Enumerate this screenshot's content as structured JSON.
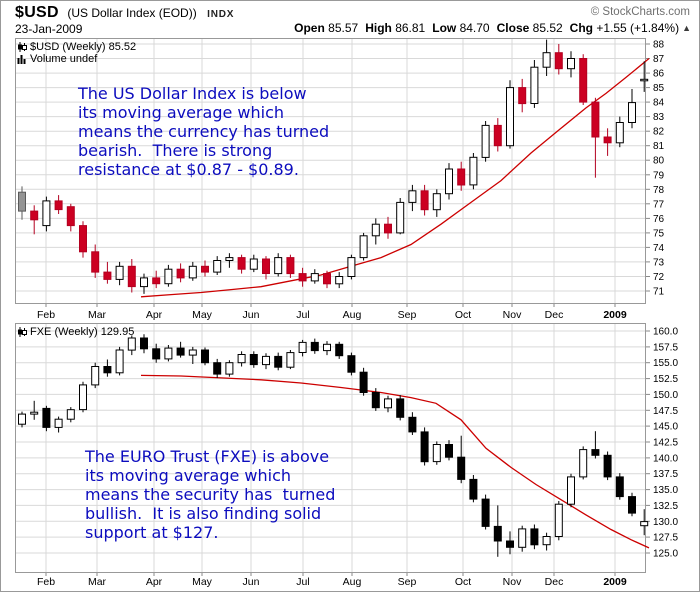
{
  "header": {
    "symbol": "$USD",
    "name": "(US Dollar Index (EOD))",
    "exchange": "INDX",
    "credit": "© StockCharts.com",
    "date": "23-Jan-2009",
    "quote": {
      "open_label": "Open",
      "open": "85.57",
      "high_label": "High",
      "high": "86.81",
      "low_label": "Low",
      "low": "84.70",
      "close_label": "Close",
      "close": "85.52",
      "chg_label": "Chg",
      "chg_value": "+1.55 (+1.84%)",
      "direction_arrow": "▲"
    }
  },
  "top_chart": {
    "legend": "$USD (Weekly) 85.52",
    "volume_legend": "Volume undef",
    "annotation": [
      "The US Dollar Index is below",
      "its moving average which",
      "means the currency has turned",
      "bearish.  There is strong",
      "resistance at $0.87 - $0.89."
    ]
  },
  "bottom_chart": {
    "legend": "FXE (Weekly) 129.95",
    "annotation": [
      "The EURO Trust (FXE) is above",
      "its moving average which",
      "means the security has  turned",
      "bullish.  It is also finding solid",
      "support at $127."
    ]
  },
  "chart_data": [
    {
      "type": "candlestick",
      "title": "$USD (Weekly)",
      "last_price": 85.52,
      "ylim": [
        71,
        88
      ],
      "ytick_step": 1,
      "ytick_decimals": 0,
      "y_axis_side": "right",
      "grid": true,
      "x_axis_labels": [
        [
          "Feb",
          45
        ],
        [
          "Mar",
          96
        ],
        [
          "Apr",
          153
        ],
        [
          "May",
          201
        ],
        [
          "Jun",
          250
        ],
        [
          "Jul",
          302
        ],
        [
          "Aug",
          351
        ],
        [
          "Sep",
          406
        ],
        [
          "Oct",
          462
        ],
        [
          "Nov",
          511
        ],
        [
          "Dec",
          553
        ],
        [
          "2009",
          614
        ]
      ],
      "candle_encoding": "[open, high, low, close, color] ; w=white hollow up, r=red down, b=black down, g=gray",
      "candles": [
        [
          77.8,
          78.2,
          75.9,
          76.5,
          "g"
        ],
        [
          76.5,
          76.9,
          74.9,
          75.9,
          "r"
        ],
        [
          75.5,
          77.5,
          75.1,
          77.2,
          "w"
        ],
        [
          77.2,
          77.6,
          76.3,
          76.6,
          "r"
        ],
        [
          76.8,
          77.0,
          75.1,
          75.5,
          "r"
        ],
        [
          75.5,
          75.8,
          73.3,
          73.7,
          "r"
        ],
        [
          73.7,
          74.2,
          71.9,
          72.3,
          "r"
        ],
        [
          72.3,
          73.0,
          71.5,
          71.8,
          "r"
        ],
        [
          71.8,
          73.0,
          71.4,
          72.7,
          "w"
        ],
        [
          72.7,
          73.2,
          70.9,
          71.3,
          "r"
        ],
        [
          71.3,
          72.2,
          70.8,
          71.9,
          "w"
        ],
        [
          71.9,
          72.4,
          71.2,
          71.5,
          "r"
        ],
        [
          71.5,
          72.8,
          71.3,
          72.5,
          "w"
        ],
        [
          72.5,
          72.9,
          71.6,
          71.9,
          "r"
        ],
        [
          71.9,
          73.0,
          71.7,
          72.7,
          "w"
        ],
        [
          72.7,
          73.1,
          72.0,
          72.3,
          "r"
        ],
        [
          72.3,
          73.4,
          72.1,
          73.1,
          "w"
        ],
        [
          73.1,
          73.6,
          72.6,
          73.3,
          "w"
        ],
        [
          73.3,
          73.5,
          72.2,
          72.5,
          "r"
        ],
        [
          72.5,
          73.5,
          72.3,
          73.2,
          "w"
        ],
        [
          73.2,
          73.4,
          71.8,
          72.2,
          "r"
        ],
        [
          72.2,
          73.6,
          72.0,
          73.3,
          "w"
        ],
        [
          73.3,
          73.5,
          71.9,
          72.2,
          "r"
        ],
        [
          72.2,
          72.6,
          71.3,
          71.7,
          "r"
        ],
        [
          71.7,
          72.5,
          71.5,
          72.2,
          "w"
        ],
        [
          72.2,
          72.4,
          71.2,
          71.5,
          "r"
        ],
        [
          71.5,
          72.3,
          71.2,
          72.0,
          "w"
        ],
        [
          72.0,
          73.5,
          71.8,
          73.3,
          "w"
        ],
        [
          73.3,
          75.0,
          73.1,
          74.8,
          "w"
        ],
        [
          74.8,
          76.0,
          74.2,
          75.6,
          "w"
        ],
        [
          75.6,
          76.1,
          74.6,
          75.0,
          "r"
        ],
        [
          75.0,
          77.4,
          74.9,
          77.1,
          "w"
        ],
        [
          77.1,
          78.3,
          76.5,
          77.9,
          "w"
        ],
        [
          77.9,
          78.3,
          76.2,
          76.6,
          "r"
        ],
        [
          76.6,
          78.0,
          76.1,
          77.7,
          "w"
        ],
        [
          77.7,
          79.8,
          77.3,
          79.4,
          "w"
        ],
        [
          79.4,
          79.9,
          77.9,
          78.3,
          "r"
        ],
        [
          78.3,
          80.5,
          78.0,
          80.2,
          "w"
        ],
        [
          80.2,
          82.7,
          79.9,
          82.4,
          "w"
        ],
        [
          82.4,
          82.9,
          80.6,
          81.0,
          "r"
        ],
        [
          81.0,
          85.5,
          80.8,
          85.0,
          "w"
        ],
        [
          85.0,
          85.6,
          83.3,
          83.9,
          "r"
        ],
        [
          83.9,
          86.9,
          83.6,
          86.4,
          "w"
        ],
        [
          86.4,
          88.3,
          85.8,
          87.4,
          "w"
        ],
        [
          87.4,
          88.0,
          85.9,
          86.3,
          "r"
        ],
        [
          86.3,
          87.5,
          85.7,
          87.0,
          "w"
        ],
        [
          87.0,
          87.3,
          83.8,
          84.0,
          "r"
        ],
        [
          84.0,
          84.3,
          78.8,
          81.6,
          "r"
        ],
        [
          81.6,
          82.2,
          80.3,
          81.2,
          "r"
        ],
        [
          81.2,
          83.0,
          80.9,
          82.6,
          "w"
        ],
        [
          82.6,
          84.9,
          82.2,
          83.97,
          "w"
        ],
        [
          85.57,
          86.81,
          84.7,
          85.52,
          "w"
        ]
      ],
      "ma_color": "#cc0000",
      "ma_points": [
        [
          140,
          70.6
        ],
        [
          170,
          70.75
        ],
        [
          200,
          70.9
        ],
        [
          230,
          71.1
        ],
        [
          260,
          71.3
        ],
        [
          290,
          71.7
        ],
        [
          320,
          72.1
        ],
        [
          350,
          72.7
        ],
        [
          380,
          73.3
        ],
        [
          410,
          74.2
        ],
        [
          440,
          75.6
        ],
        [
          470,
          77.1
        ],
        [
          500,
          78.6
        ],
        [
          530,
          80.5
        ],
        [
          560,
          82.2
        ],
        [
          585,
          83.6
        ],
        [
          605,
          84.6
        ],
        [
          625,
          85.7
        ],
        [
          648,
          87.0
        ]
      ]
    },
    {
      "type": "candlestick",
      "title": "FXE (Weekly)",
      "last_price": 129.95,
      "ylim": [
        125,
        160
      ],
      "ytick_step": 2.5,
      "ytick_decimals": 1,
      "y_axis_side": "right",
      "grid": true,
      "x_axis_labels": [
        [
          "Feb",
          45
        ],
        [
          "Mar",
          96
        ],
        [
          "Apr",
          153
        ],
        [
          "May",
          201
        ],
        [
          "Jun",
          250
        ],
        [
          "Jul",
          302
        ],
        [
          "Aug",
          351
        ],
        [
          "Sep",
          406
        ],
        [
          "Oct",
          462
        ],
        [
          "Nov",
          511
        ],
        [
          "Dec",
          553
        ],
        [
          "2009",
          614
        ]
      ],
      "candle_encoding": "[open, high, low, close, color] ; w=white hollow up, b=black down",
      "candles": [
        [
          145.3,
          147.3,
          144.8,
          146.9,
          "w"
        ],
        [
          146.9,
          149.0,
          146.0,
          147.2,
          "w"
        ],
        [
          147.8,
          148.2,
          144.2,
          144.8,
          "b"
        ],
        [
          144.8,
          146.5,
          144.0,
          146.1,
          "w"
        ],
        [
          146.1,
          148.0,
          145.6,
          147.6,
          "w"
        ],
        [
          147.6,
          152.0,
          147.2,
          151.5,
          "w"
        ],
        [
          151.5,
          155.0,
          151.0,
          154.4,
          "w"
        ],
        [
          154.4,
          155.5,
          152.8,
          153.4,
          "b"
        ],
        [
          153.4,
          157.5,
          153.0,
          157.0,
          "w"
        ],
        [
          157.0,
          159.3,
          156.2,
          158.9,
          "w"
        ],
        [
          158.9,
          159.5,
          156.5,
          157.2,
          "b"
        ],
        [
          157.2,
          158.0,
          155.0,
          155.6,
          "b"
        ],
        [
          155.6,
          157.8,
          155.2,
          157.3,
          "w"
        ],
        [
          157.3,
          158.3,
          155.8,
          156.2,
          "b"
        ],
        [
          156.2,
          157.5,
          154.8,
          157.0,
          "w"
        ],
        [
          157.0,
          157.4,
          154.6,
          155.0,
          "b"
        ],
        [
          155.0,
          155.6,
          152.6,
          153.2,
          "b"
        ],
        [
          153.2,
          155.4,
          152.8,
          155.0,
          "w"
        ],
        [
          155.0,
          156.8,
          154.4,
          156.3,
          "w"
        ],
        [
          156.3,
          156.8,
          154.2,
          154.7,
          "b"
        ],
        [
          154.7,
          156.5,
          154.0,
          156.0,
          "w"
        ],
        [
          156.0,
          156.6,
          153.8,
          154.3,
          "b"
        ],
        [
          154.3,
          157.0,
          154.0,
          156.6,
          "w"
        ],
        [
          156.6,
          158.6,
          156.0,
          158.2,
          "w"
        ],
        [
          158.2,
          158.8,
          156.4,
          156.9,
          "b"
        ],
        [
          156.9,
          158.4,
          156.2,
          157.9,
          "w"
        ],
        [
          157.9,
          158.3,
          155.6,
          156.1,
          "b"
        ],
        [
          156.1,
          156.6,
          153.0,
          153.5,
          "b"
        ],
        [
          153.5,
          154.2,
          149.8,
          150.3,
          "b"
        ],
        [
          150.3,
          151.0,
          147.4,
          147.9,
          "b"
        ],
        [
          147.9,
          149.8,
          147.2,
          149.3,
          "w"
        ],
        [
          149.3,
          149.9,
          145.9,
          146.4,
          "b"
        ],
        [
          146.4,
          147.2,
          143.6,
          144.1,
          "b"
        ],
        [
          144.1,
          144.8,
          138.8,
          139.4,
          "b"
        ],
        [
          139.4,
          142.6,
          138.9,
          142.1,
          "w"
        ],
        [
          142.1,
          142.8,
          139.6,
          140.1,
          "b"
        ],
        [
          140.1,
          143.5,
          136.0,
          136.6,
          "b"
        ],
        [
          136.6,
          137.3,
          133.0,
          133.5,
          "b"
        ],
        [
          133.5,
          134.2,
          128.7,
          129.2,
          "b"
        ],
        [
          129.2,
          132.5,
          124.4,
          126.9,
          "b"
        ],
        [
          126.9,
          128.4,
          124.8,
          125.9,
          "b"
        ],
        [
          125.9,
          129.3,
          125.2,
          128.8,
          "w"
        ],
        [
          128.8,
          129.5,
          125.6,
          126.3,
          "b"
        ],
        [
          126.3,
          128.2,
          125.4,
          127.6,
          "w"
        ],
        [
          127.6,
          133.2,
          127.0,
          132.7,
          "w"
        ],
        [
          132.7,
          137.5,
          132.2,
          137.0,
          "w"
        ],
        [
          137.0,
          141.8,
          136.6,
          141.3,
          "w"
        ],
        [
          141.3,
          144.2,
          139.9,
          140.4,
          "b"
        ],
        [
          140.4,
          141.0,
          136.5,
          137.0,
          "b"
        ],
        [
          137.0,
          137.6,
          133.4,
          133.9,
          "b"
        ],
        [
          133.9,
          134.5,
          130.8,
          131.3,
          "b"
        ],
        [
          129.3,
          131.9,
          127.8,
          129.95,
          "w"
        ]
      ],
      "ma_color": "#cc0000",
      "ma_points": [
        [
          140,
          153.0
        ],
        [
          180,
          152.9
        ],
        [
          220,
          152.6
        ],
        [
          260,
          152.3
        ],
        [
          300,
          151.8
        ],
        [
          340,
          151.1
        ],
        [
          380,
          150.3
        ],
        [
          410,
          149.5
        ],
        [
          435,
          148.6
        ],
        [
          460,
          146.0
        ],
        [
          485,
          141.5
        ],
        [
          510,
          138.5
        ],
        [
          535,
          135.8
        ],
        [
          560,
          133.4
        ],
        [
          585,
          131.0
        ],
        [
          610,
          128.7
        ],
        [
          630,
          127.1
        ],
        [
          648,
          125.8
        ]
      ]
    }
  ]
}
